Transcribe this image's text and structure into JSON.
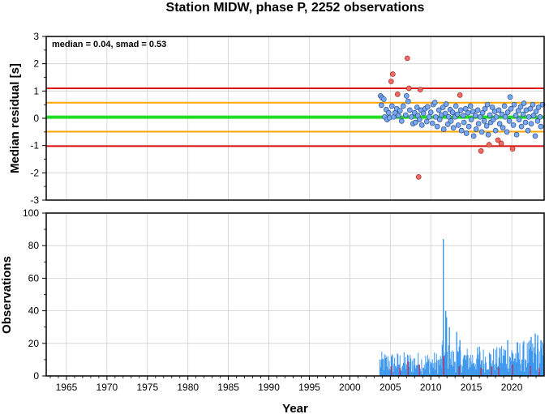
{
  "chart_data": [
    {
      "type": "scatter",
      "title": "Station MIDW, phase P, 2252 observations",
      "ylabel": "Median residual [s]",
      "annotation": "median = 0.04, smad = 0.53",
      "xlim": [
        1962.5,
        2024
      ],
      "ylim": [
        -3,
        3
      ],
      "yticks": [
        "3",
        "2",
        "1",
        "0",
        "-1",
        "-2",
        "-3"
      ],
      "grid": true,
      "colors": {
        "median_line": "#22dd22",
        "inner_band": "#ffa500",
        "outer_band": "#dd1111",
        "point_fill": "#78a9f0",
        "point_stroke": "#2b4b8c",
        "outlier_fill": "#f26b63",
        "outlier_stroke": "#9b2a22"
      },
      "reference_lines": [
        {
          "kind": "median",
          "value": 0.04
        },
        {
          "kind": "inner",
          "value": 0.57
        },
        {
          "kind": "inner",
          "value": -0.49
        },
        {
          "kind": "outer",
          "value": 1.1
        },
        {
          "kind": "outer",
          "value": -1.02
        }
      ],
      "outliers": [
        [
          2005.1,
          1.35
        ],
        [
          2005.3,
          1.62
        ],
        [
          2005.9,
          0.88
        ],
        [
          2007.1,
          2.2
        ],
        [
          2007.3,
          1.1
        ],
        [
          2008.5,
          -2.15
        ],
        [
          2008.7,
          1.05
        ],
        [
          2013.6,
          0.85
        ],
        [
          2016.2,
          -1.2
        ],
        [
          2017.2,
          -0.97
        ],
        [
          2018.3,
          -0.8
        ],
        [
          2018.7,
          -0.92
        ],
        [
          2020.1,
          -1.12
        ]
      ],
      "points": [
        [
          2003.8,
          0.82
        ],
        [
          2003.9,
          0.48
        ],
        [
          2004.0,
          0.75
        ],
        [
          2004.2,
          0.7
        ],
        [
          2004.3,
          0.05
        ],
        [
          2004.5,
          0.32
        ],
        [
          2004.6,
          -0.05
        ],
        [
          2004.8,
          0.2
        ],
        [
          2004.9,
          0.02
        ],
        [
          2005.2,
          0.45
        ],
        [
          2005.4,
          0.05
        ],
        [
          2005.6,
          0.2
        ],
        [
          2005.8,
          0.35
        ],
        [
          2006.0,
          0.1
        ],
        [
          2006.2,
          0.28
        ],
        [
          2006.4,
          -0.1
        ],
        [
          2006.6,
          0.45
        ],
        [
          2006.9,
          0.12
        ],
        [
          2007.0,
          0.82
        ],
        [
          2007.2,
          0.62
        ],
        [
          2007.4,
          0.3
        ],
        [
          2007.6,
          0.05
        ],
        [
          2007.8,
          -0.2
        ],
        [
          2008.0,
          0.2
        ],
        [
          2008.1,
          -0.15
        ],
        [
          2008.3,
          0.4
        ],
        [
          2008.4,
          0.1
        ],
        [
          2008.6,
          -0.05
        ],
        [
          2008.8,
          0.3
        ],
        [
          2008.9,
          -0.25
        ],
        [
          2009.1,
          0.18
        ],
        [
          2009.3,
          0.35
        ],
        [
          2009.5,
          -0.12
        ],
        [
          2009.6,
          0.42
        ],
        [
          2009.8,
          0.05
        ],
        [
          2010.0,
          0.22
        ],
        [
          2010.2,
          -0.18
        ],
        [
          2010.3,
          0.5
        ],
        [
          2010.5,
          0.58
        ],
        [
          2010.6,
          0.05
        ],
        [
          2010.8,
          -0.3
        ],
        [
          2011.0,
          0.3
        ],
        [
          2011.1,
          -0.05
        ],
        [
          2011.3,
          0.12
        ],
        [
          2011.5,
          0.4
        ],
        [
          2011.6,
          -0.4
        ],
        [
          2011.8,
          0.18
        ],
        [
          2011.9,
          0.52
        ],
        [
          2012.1,
          -0.22
        ],
        [
          2012.2,
          0.05
        ],
        [
          2012.4,
          0.32
        ],
        [
          2012.5,
          -0.1
        ],
        [
          2012.7,
          0.22
        ],
        [
          2012.8,
          -0.35
        ],
        [
          2013.0,
          0.05
        ],
        [
          2013.1,
          0.45
        ],
        [
          2013.3,
          0.15
        ],
        [
          2013.4,
          -0.25
        ],
        [
          2013.7,
          0.3
        ],
        [
          2013.8,
          -0.45
        ],
        [
          2014.0,
          0.1
        ],
        [
          2014.1,
          -0.15
        ],
        [
          2014.3,
          0.35
        ],
        [
          2014.4,
          -0.55
        ],
        [
          2014.6,
          0.2
        ],
        [
          2014.7,
          -0.3
        ],
        [
          2014.9,
          0.45
        ],
        [
          2015.0,
          -0.05
        ],
        [
          2015.2,
          0.25
        ],
        [
          2015.3,
          -0.65
        ],
        [
          2015.5,
          0.1
        ],
        [
          2015.6,
          -0.4
        ],
        [
          2015.8,
          0.3
        ],
        [
          2015.9,
          -0.2
        ],
        [
          2016.1,
          0.05
        ],
        [
          2016.3,
          -0.5
        ],
        [
          2016.4,
          0.2
        ],
        [
          2016.6,
          -0.1
        ],
        [
          2016.7,
          0.35
        ],
        [
          2016.9,
          -0.28
        ],
        [
          2017.0,
          0.5
        ],
        [
          2017.1,
          -0.6
        ],
        [
          2017.3,
          0.12
        ],
        [
          2017.4,
          -0.15
        ],
        [
          2017.6,
          0.4
        ],
        [
          2017.7,
          -0.05
        ],
        [
          2017.9,
          0.25
        ],
        [
          2018.0,
          -0.45
        ],
        [
          2018.1,
          0.05
        ],
        [
          2018.4,
          0.3
        ],
        [
          2018.5,
          -0.2
        ],
        [
          2018.8,
          0.15
        ],
        [
          2018.9,
          -0.35
        ],
        [
          2019.1,
          0.45
        ],
        [
          2019.2,
          0.05
        ],
        [
          2019.4,
          -0.5
        ],
        [
          2019.5,
          0.22
        ],
        [
          2019.7,
          -0.1
        ],
        [
          2019.8,
          0.78
        ],
        [
          2019.9,
          0.35
        ],
        [
          2020.2,
          -0.25
        ],
        [
          2020.3,
          0.5
        ],
        [
          2020.5,
          0.1
        ],
        [
          2020.6,
          -0.6
        ],
        [
          2020.8,
          0.28
        ],
        [
          2020.9,
          -0.05
        ],
        [
          2021.1,
          0.42
        ],
        [
          2021.2,
          -0.3
        ],
        [
          2021.4,
          0.15
        ],
        [
          2021.5,
          0.55
        ],
        [
          2021.7,
          -0.15
        ],
        [
          2021.8,
          0.3
        ],
        [
          2022.0,
          -0.45
        ],
        [
          2022.1,
          0.05
        ],
        [
          2022.3,
          0.35
        ],
        [
          2022.4,
          -0.2
        ],
        [
          2022.6,
          0.5
        ],
        [
          2022.7,
          0.1
        ],
        [
          2022.9,
          -0.65
        ],
        [
          2023.0,
          0.25
        ],
        [
          2023.2,
          -0.1
        ],
        [
          2023.3,
          0.4
        ],
        [
          2023.5,
          0.05
        ],
        [
          2023.6,
          -0.3
        ],
        [
          2023.8,
          0.5
        ]
      ]
    },
    {
      "type": "bar",
      "ylabel": "Observations",
      "xlabel": "Year",
      "xlim": [
        1962.5,
        2024
      ],
      "ylim": [
        0,
        100
      ],
      "xticks": [
        1965,
        1970,
        1975,
        1980,
        1985,
        1990,
        1995,
        2000,
        2005,
        2010,
        2015,
        2020
      ],
      "xtick_labels": [
        "1965",
        "1970",
        "1975",
        "1980",
        "1985",
        "1990",
        "1995",
        "2000",
        "2005",
        "2010",
        "2015",
        "2020"
      ],
      "yticks": [
        "100",
        "80",
        "60",
        "40",
        "20",
        "0"
      ],
      "grid": true,
      "colors": {
        "bars": "#3b96ee",
        "outlier_bars": "#cc2244"
      },
      "ranges": [
        {
          "start": 2003.7,
          "end": 2011.4,
          "min": 1,
          "max": 15
        },
        {
          "start": 2011.4,
          "end": 2011.7,
          "min": 8,
          "max": 22
        },
        {
          "start": 2011.7,
          "end": 2012.5,
          "min": 3,
          "max": 20
        },
        {
          "start": 2012.5,
          "end": 2018.5,
          "min": 2,
          "max": 18
        },
        {
          "start": 2018.5,
          "end": 2024.0,
          "min": 2,
          "max": 22
        }
      ],
      "peaks": [
        [
          2011.55,
          84
        ],
        [
          2011.85,
          40
        ],
        [
          2011.95,
          36
        ],
        [
          2012.3,
          30
        ],
        [
          2013.2,
          27
        ],
        [
          2013.6,
          22
        ],
        [
          2016.0,
          18
        ],
        [
          2019.5,
          22
        ],
        [
          2021.4,
          19
        ],
        [
          2022.4,
          24
        ],
        [
          2022.9,
          26
        ],
        [
          2023.2,
          25
        ],
        [
          2023.6,
          22
        ]
      ],
      "outlier_bars": [
        [
          2005.1,
          6
        ],
        [
          2006.2,
          5
        ],
        [
          2007.2,
          9
        ],
        [
          2008.6,
          7
        ],
        [
          2011.6,
          12
        ],
        [
          2013.5,
          6
        ],
        [
          2016.2,
          5
        ],
        [
          2017.5,
          6
        ],
        [
          2018.4,
          5
        ],
        [
          2020.1,
          7
        ],
        [
          2022.3,
          6
        ],
        [
          2023.4,
          5
        ]
      ]
    }
  ]
}
